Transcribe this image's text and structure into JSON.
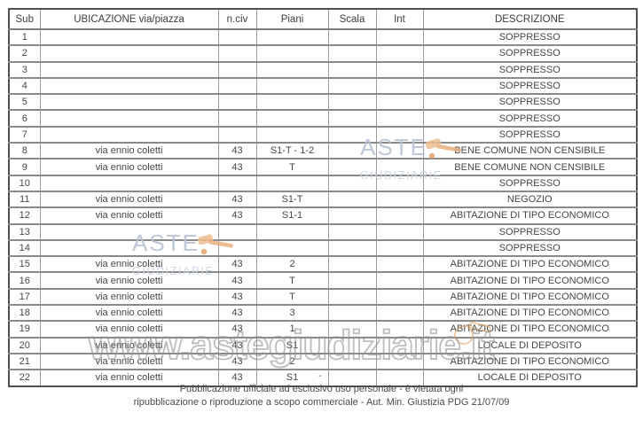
{
  "table": {
    "columns": [
      {
        "key": "sub",
        "label": "Sub"
      },
      {
        "key": "ubicazione",
        "label": "UBICAZIONE via/piazza"
      },
      {
        "key": "nciv",
        "label": "n.civ"
      },
      {
        "key": "piani",
        "label": "Piani"
      },
      {
        "key": "scala",
        "label": "Scala"
      },
      {
        "key": "int",
        "label": "Int"
      },
      {
        "key": "descrizione",
        "label": "DESCRIZIONE"
      }
    ],
    "rows": [
      {
        "sub": "1",
        "ubicazione": "",
        "nciv": "",
        "piani": "",
        "scala": "",
        "int": "",
        "descrizione": "SOPPRESSO"
      },
      {
        "sub": "2",
        "ubicazione": "",
        "nciv": "",
        "piani": "",
        "scala": "",
        "int": "",
        "descrizione": "SOPPRESSO"
      },
      {
        "sub": "3",
        "ubicazione": "",
        "nciv": "",
        "piani": "",
        "scala": "",
        "int": "",
        "descrizione": "SOPPRESSO"
      },
      {
        "sub": "4",
        "ubicazione": "",
        "nciv": "",
        "piani": "",
        "scala": "",
        "int": "",
        "descrizione": "SOPPRESSO"
      },
      {
        "sub": "5",
        "ubicazione": "",
        "nciv": "",
        "piani": "",
        "scala": "",
        "int": "",
        "descrizione": "SOPPRESSO"
      },
      {
        "sub": "6",
        "ubicazione": "",
        "nciv": "",
        "piani": "",
        "scala": "",
        "int": "",
        "descrizione": "SOPPRESSO"
      },
      {
        "sub": "7",
        "ubicazione": "",
        "nciv": "",
        "piani": "",
        "scala": "",
        "int": "",
        "descrizione": "SOPPRESSO"
      },
      {
        "sub": "8",
        "ubicazione": "via ennio coletti",
        "nciv": "43",
        "piani": "S1-T - 1-2",
        "scala": "",
        "int": "",
        "descrizione": "BENE COMUNE NON CENSIBILE"
      },
      {
        "sub": "9",
        "ubicazione": "via ennio coletti",
        "nciv": "43",
        "piani": "T",
        "scala": "",
        "int": "",
        "descrizione": "BENE COMUNE NON CENSIBILE"
      },
      {
        "sub": "10",
        "ubicazione": "",
        "nciv": "",
        "piani": "",
        "scala": "",
        "int": "",
        "descrizione": "SOPPRESSO"
      },
      {
        "sub": "11",
        "ubicazione": "via ennio coletti",
        "nciv": "43",
        "piani": "S1-T",
        "scala": "",
        "int": "",
        "descrizione": "NEGOZIO"
      },
      {
        "sub": "12",
        "ubicazione": "via ennio coletti",
        "nciv": "43",
        "piani": "S1-1",
        "scala": "",
        "int": "",
        "descrizione": "ABITAZIONE DI TIPO ECONOMICO"
      },
      {
        "sub": "13",
        "ubicazione": "",
        "nciv": "",
        "piani": "",
        "scala": "",
        "int": "",
        "descrizione": "SOPPRESSO"
      },
      {
        "sub": "14",
        "ubicazione": "",
        "nciv": "",
        "piani": "",
        "scala": "",
        "int": "",
        "descrizione": "SOPPRESSO"
      },
      {
        "sub": "15",
        "ubicazione": "via ennio coletti",
        "nciv": "43",
        "piani": "2",
        "scala": "",
        "int": "",
        "descrizione": "ABITAZIONE DI TIPO ECONOMICO"
      },
      {
        "sub": "16",
        "ubicazione": "via ennio coletti",
        "nciv": "43",
        "piani": "T",
        "scala": "",
        "int": "",
        "descrizione": "ABITAZIONE DI TIPO ECONOMICO"
      },
      {
        "sub": "17",
        "ubicazione": "via ennio coletti",
        "nciv": "43",
        "piani": "T",
        "scala": "",
        "int": "",
        "descrizione": "ABITAZIONE DI TIPO ECONOMICO"
      },
      {
        "sub": "18",
        "ubicazione": "via ennio coletti",
        "nciv": "43",
        "piani": "3",
        "scala": "",
        "int": "",
        "descrizione": "ABITAZIONE DI TIPO ECONOMICO"
      },
      {
        "sub": "19",
        "ubicazione": "via ennio coletti",
        "nciv": "43",
        "piani": "1",
        "scala": "",
        "int": "",
        "descrizione": "ABITAZIONE DI TIPO ECONOMICO"
      },
      {
        "sub": "20",
        "ubicazione": "via ennio coletti",
        "nciv": "43",
        "piani": "S1",
        "scala": "",
        "int": "",
        "descrizione": "LOCALE DI DEPOSITO"
      },
      {
        "sub": "21",
        "ubicazione": "via ennio coletti",
        "nciv": "43",
        "piani": "2",
        "scala": "",
        "int": "",
        "descrizione": "ABITAZIONE DI TIPO ECONOMICO"
      },
      {
        "sub": "22",
        "ubicazione": "via ennio coletti",
        "nciv": "43",
        "piani": "S1",
        "piani_note": "-",
        "scala": "",
        "int": "",
        "descrizione": "LOCALE DI DEPOSITO"
      }
    ]
  },
  "watermarks": {
    "aste_line1": "ASTE",
    "aste_line2": "GIUDIZIARIE",
    "site_url": "www.astegiudiziarie.it",
    "colors": {
      "aste_text": "#b7c3d4",
      "aste_sub": "#c8d4e2",
      "gavel": "#ecbe92",
      "gavel_dark": "#e2a369",
      "outline": "#919191"
    }
  },
  "footer": {
    "line1": "Pubblicazione ufficiale ad esclusivo uso personale - è vietata ogni",
    "line2": "ripubblicazione o riproduzione a scopo commerciale - Aut. Min. Giustizia PDG 21/07/09"
  }
}
